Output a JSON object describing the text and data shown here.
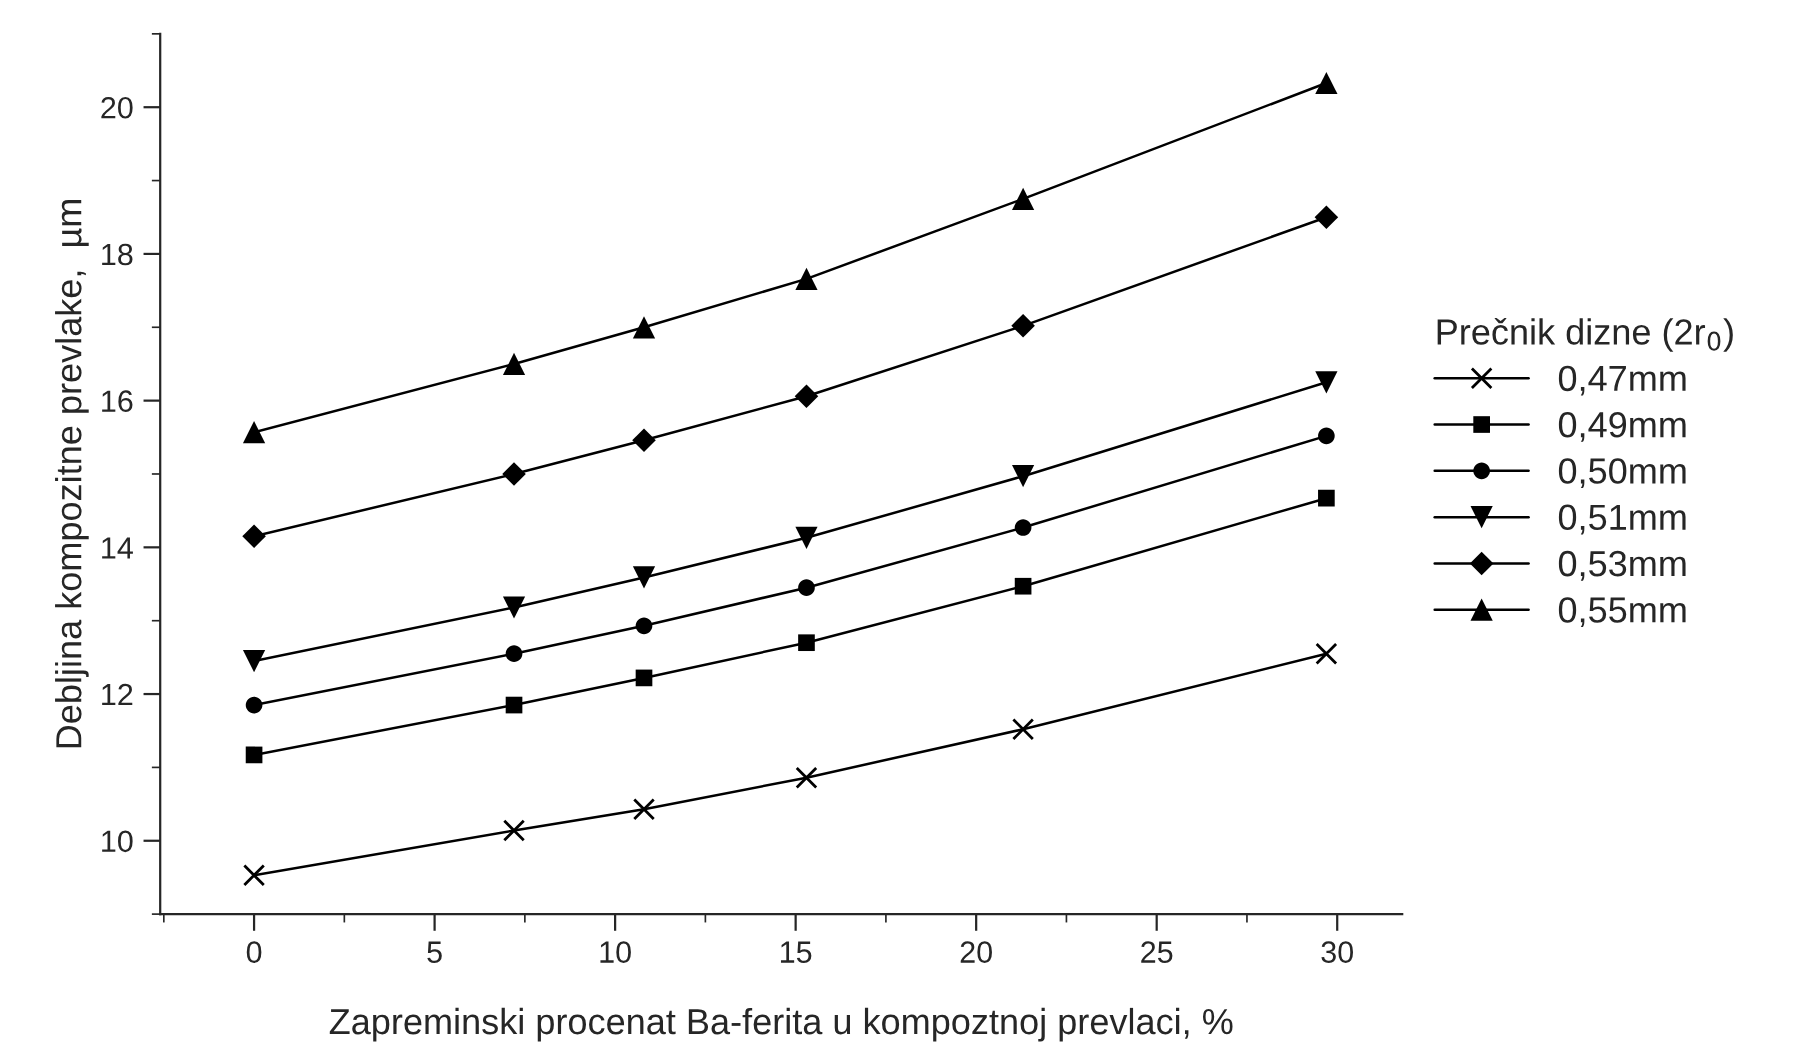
{
  "chart_data": {
    "type": "line",
    "xlabel": "Zapreminski procenat Ba-ferita u kompoztnoj prevlaci, %",
    "ylabel": "Debljina kompozitne prevlake,  µm",
    "legend_title": "Prečnik dizne (2r$_{0}$)",
    "x": [
      0,
      7.2,
      10.8,
      15.3,
      21.3,
      29.7
    ],
    "series": [
      {
        "name": "0,47mm",
        "color": "#000000",
        "marker": "cross",
        "values": [
          9.53,
          10.14,
          10.43,
          10.86,
          11.52,
          12.55
        ]
      },
      {
        "name": "0,49mm",
        "color": "#000000",
        "marker": "square",
        "values": [
          11.17,
          11.85,
          12.22,
          12.7,
          13.47,
          14.67
        ]
      },
      {
        "name": "0,50mm",
        "color": "#000000",
        "marker": "circle",
        "values": [
          11.85,
          12.55,
          12.93,
          13.45,
          14.27,
          15.52
        ]
      },
      {
        "name": "0,51mm",
        "color": "#000000",
        "marker": "triangle_down",
        "values": [
          12.45,
          13.18,
          13.59,
          14.13,
          14.97,
          16.25
        ]
      },
      {
        "name": "0,53mm",
        "color": "#000000",
        "marker": "diamond",
        "values": [
          14.15,
          15.0,
          15.46,
          16.06,
          17.02,
          18.5
        ]
      },
      {
        "name": "0,55mm",
        "color": "#000000",
        "marker": "triangle",
        "values": [
          15.57,
          16.5,
          17.0,
          17.66,
          18.75,
          20.33
        ]
      }
    ],
    "xlim": [
      -2.6,
      31.8
    ],
    "xticks": [
      0,
      5,
      10,
      15,
      20,
      25,
      30
    ],
    "ylim": [
      9,
      21
    ],
    "yticks": [
      10,
      12,
      14,
      16,
      18,
      20
    ],
    "grid": false,
    "legend": "right",
    "line_style": "solid"
  }
}
